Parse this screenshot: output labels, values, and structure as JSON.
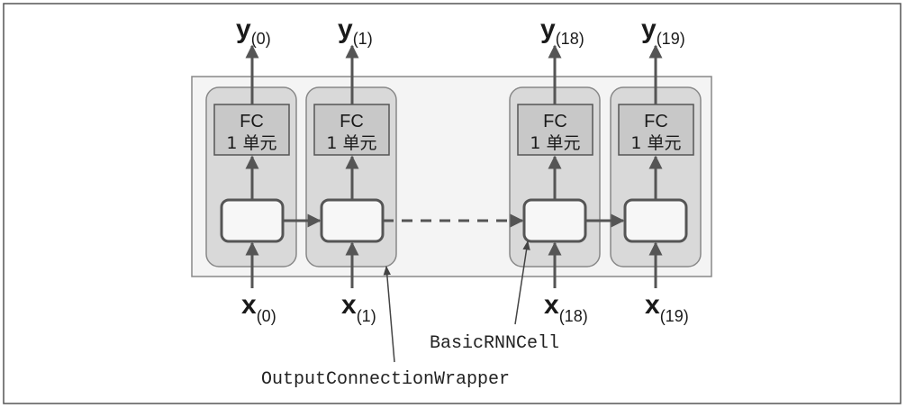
{
  "colors": {
    "frame": "#555555",
    "panel": "#f4f4f4",
    "wrapper": "#d9d9d9",
    "fc_box": "#c8c8c8",
    "cell": "#f7f7f7",
    "stroke": "#555555",
    "arrow": "#555555"
  },
  "diagram": {
    "columns": [
      {
        "output": {
          "main": "y",
          "sub": "(0)"
        },
        "fc": {
          "title": "FC",
          "units": "1 单元"
        },
        "input": {
          "main": "x",
          "sub": "(0)"
        }
      },
      {
        "output": {
          "main": "y",
          "sub": "(1)"
        },
        "fc": {
          "title": "FC",
          "units": "1 单元"
        },
        "input": {
          "main": "x",
          "sub": "(1)"
        }
      },
      {
        "output": {
          "main": "y",
          "sub": "(18)"
        },
        "fc": {
          "title": "FC",
          "units": "1 单元"
        },
        "input": {
          "main": "x",
          "sub": "(18)"
        }
      },
      {
        "output": {
          "main": "y",
          "sub": "(19)"
        },
        "fc": {
          "title": "FC",
          "units": "1 单元"
        },
        "input": {
          "main": "x",
          "sub": "(19)"
        }
      }
    ],
    "annotations": {
      "cell_label": "BasicRNNCell",
      "wrapper_label": "OutputConnectionWrapper"
    }
  }
}
